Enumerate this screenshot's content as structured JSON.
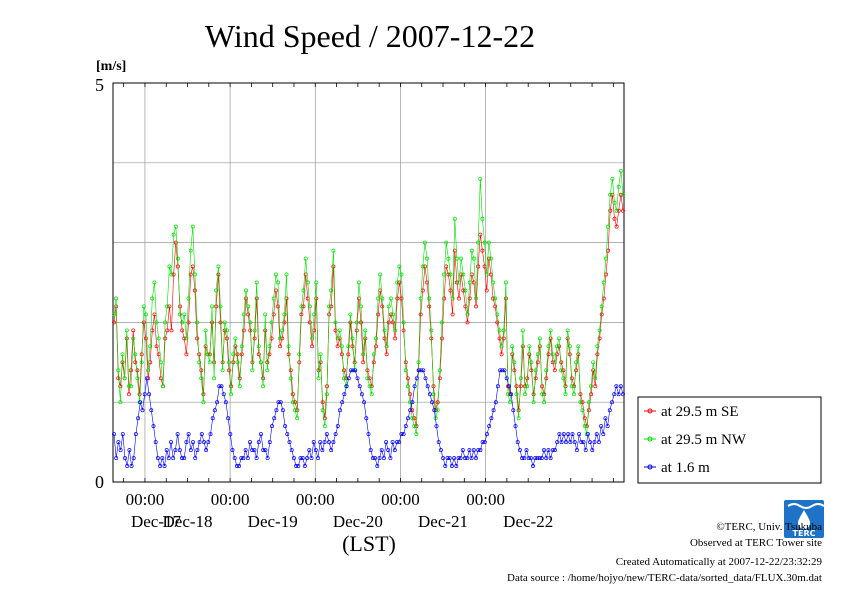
{
  "chart_data": {
    "type": "line",
    "title": "Wind Speed / 2007-12-22",
    "ylabel": "[m/s]",
    "xlabel": "(LST)",
    "ylim": [
      0,
      5
    ],
    "y_ticks": [
      "0",
      "5"
    ],
    "x_time_ticks": [
      "00:00",
      "00:00",
      "00:00",
      "00:00",
      "00:00"
    ],
    "x_date_labels": [
      "Dec-17",
      "Dec-18",
      "Dec-19",
      "Dec-20",
      "Dec-21",
      "Dec-22"
    ],
    "grid": true,
    "legend_position": "right",
    "x_start": "2007-12-16 15:00",
    "sample_interval_hours": 0.5,
    "series": [
      {
        "name": "at 29.5 m SE",
        "color": "#ff0000",
        "values": [
          2.0,
          2.2,
          1.3,
          1.2,
          1.5,
          1.3,
          1.8,
          1.1,
          1.4,
          1.9,
          1.5,
          1.4,
          1.1,
          1.6,
          2.0,
          1.8,
          1.3,
          1.5,
          1.9,
          2.1,
          1.7,
          1.6,
          1.3,
          1.2,
          1.8,
          1.9,
          2.2,
          1.9,
          2.6,
          3.0,
          2.7,
          2.2,
          1.9,
          1.8,
          1.6,
          2.0,
          2.6,
          2.7,
          2.4,
          1.8,
          1.6,
          1.4,
          1.1,
          1.7,
          1.6,
          1.6,
          2.0,
          1.5,
          2.2,
          2.6,
          2.0,
          1.5,
          1.9,
          1.8,
          1.4,
          1.2,
          1.5,
          1.7,
          1.6,
          1.3,
          1.6,
          1.9,
          2.3,
          2.1,
          1.9,
          1.5,
          1.8,
          2.3,
          1.6,
          1.5,
          1.3,
          1.9,
          1.5,
          1.6,
          1.8,
          2.1,
          2.4,
          2.2,
          1.7,
          1.8,
          2.0,
          2.3,
          1.6,
          1.4,
          1.1,
          1.0,
          0.9,
          1.5,
          2.1,
          2.2,
          2.6,
          2.3,
          2.0,
          1.7,
          1.9,
          2.3,
          1.4,
          1.5,
          1.0,
          0.8,
          1.2,
          2.1,
          2.2,
          2.7,
          1.9,
          1.7,
          1.8,
          1.6,
          1.4,
          1.3,
          1.6,
          2.0,
          1.7,
          1.5,
          1.9,
          2.3,
          2.0,
          1.5,
          1.8,
          1.4,
          1.3,
          1.2,
          1.5,
          1.7,
          2.1,
          2.4,
          2.2,
          1.8,
          1.6,
          2.0,
          2.1,
          2.0,
          1.8,
          2.3,
          2.5,
          2.3,
          1.9,
          1.5,
          1.3,
          1.1,
          0.9,
          0.8,
          0.7,
          1.4,
          2.1,
          2.4,
          2.7,
          2.5,
          2.2,
          1.8,
          1.2,
          0.9,
          1.0,
          1.3,
          1.8,
          2.3,
          2.7,
          2.6,
          2.4,
          2.1,
          2.9,
          2.5,
          2.3,
          2.6,
          2.4,
          2.2,
          2.0,
          2.3,
          2.6,
          2.5,
          2.2,
          2.7,
          3.1,
          2.9,
          2.7,
          2.4,
          2.8,
          2.6,
          2.3,
          2.2,
          2.0,
          1.8,
          1.6,
          1.8,
          2.3,
          1.2,
          1.1,
          1.6,
          1.4,
          1.2,
          0.9,
          1.2,
          1.7,
          1.2,
          1.3,
          1.6,
          1.4,
          1.1,
          1.3,
          1.5,
          1.7,
          1.2,
          1.1,
          1.3,
          1.6,
          1.8,
          1.5,
          1.4,
          1.6,
          1.7,
          1.5,
          1.4,
          1.2,
          1.8,
          1.6,
          1.3,
          1.2,
          1.4,
          1.6,
          1.1,
          1.0,
          0.8,
          0.7,
          0.9,
          1.1,
          1.4,
          1.2,
          1.6,
          1.8,
          2.1,
          2.3,
          2.6,
          2.9,
          3.4,
          3.6,
          3.3,
          3.2,
          3.4,
          3.6,
          3.4
        ]
      },
      {
        "name": "at 29.5 m NW",
        "color": "#00dd00",
        "values": [
          2.1,
          2.3,
          1.4,
          1.0,
          1.6,
          1.3,
          1.9,
          1.2,
          1.2,
          1.8,
          1.6,
          1.3,
          1.0,
          1.5,
          2.2,
          2.1,
          1.4,
          1.7,
          2.3,
          2.5,
          2.0,
          1.8,
          1.5,
          1.2,
          2.0,
          2.2,
          2.7,
          2.6,
          3.1,
          3.2,
          2.8,
          2.1,
          2.0,
          2.1,
          1.8,
          2.3,
          2.9,
          3.2,
          2.6,
          2.0,
          1.5,
          1.3,
          1.0,
          1.9,
          1.6,
          1.5,
          2.2,
          1.3,
          2.4,
          2.7,
          2.2,
          1.4,
          2.0,
          1.9,
          1.5,
          1.1,
          1.6,
          1.8,
          1.5,
          1.2,
          1.7,
          2.1,
          2.4,
          2.2,
          2.0,
          1.4,
          1.9,
          2.5,
          1.7,
          1.5,
          1.2,
          2.1,
          1.4,
          1.7,
          2.0,
          2.3,
          2.6,
          2.5,
          1.8,
          1.9,
          2.1,
          2.6,
          1.7,
          1.3,
          1.0,
          0.9,
          0.8,
          1.6,
          2.2,
          2.4,
          2.8,
          2.5,
          2.2,
          1.8,
          2.1,
          2.5,
          1.3,
          1.6,
          0.9,
          0.7,
          1.1,
          2.2,
          2.4,
          2.9,
          2.0,
          1.8,
          1.9,
          1.7,
          1.3,
          1.2,
          1.7,
          2.1,
          1.8,
          1.4,
          2.0,
          2.5,
          2.2,
          1.6,
          1.9,
          1.3,
          1.2,
          1.1,
          1.6,
          1.8,
          2.3,
          2.6,
          2.3,
          1.9,
          1.7,
          2.2,
          2.3,
          2.1,
          1.9,
          2.5,
          2.7,
          2.6,
          2.0,
          1.4,
          1.2,
          1.0,
          0.8,
          0.7,
          0.6,
          1.5,
          2.3,
          2.7,
          3.0,
          2.8,
          2.3,
          1.9,
          1.1,
          0.8,
          0.9,
          1.4,
          2.0,
          2.6,
          3.0,
          2.8,
          2.6,
          2.3,
          3.3,
          2.8,
          2.5,
          2.8,
          2.6,
          2.4,
          2.1,
          2.5,
          2.9,
          2.8,
          2.3,
          3.0,
          3.8,
          3.3,
          3.0,
          2.6,
          3.0,
          2.8,
          2.5,
          2.3,
          2.1,
          1.9,
          1.7,
          1.9,
          2.5,
          1.1,
          1.0,
          1.7,
          1.5,
          1.1,
          0.8,
          1.3,
          1.9,
          1.1,
          1.2,
          1.7,
          1.5,
          1.0,
          1.4,
          1.6,
          1.8,
          1.1,
          1.0,
          1.4,
          1.7,
          1.9,
          1.6,
          1.5,
          1.7,
          1.8,
          1.4,
          1.3,
          1.1,
          1.9,
          1.7,
          1.2,
          1.1,
          1.5,
          1.7,
          1.0,
          0.9,
          0.7,
          0.6,
          1.0,
          1.2,
          1.5,
          1.3,
          1.7,
          1.9,
          2.2,
          2.5,
          2.8,
          3.2,
          3.6,
          3.8,
          3.5,
          3.4,
          3.7,
          3.9,
          3.6
        ]
      },
      {
        "name": "at 1.6 m",
        "color": "#0000ff",
        "values": [
          0.6,
          0.3,
          0.5,
          0.4,
          0.6,
          0.3,
          0.2,
          0.4,
          0.2,
          0.3,
          0.6,
          0.8,
          1.0,
          0.9,
          1.1,
          1.3,
          1.1,
          0.9,
          0.7,
          0.5,
          0.3,
          0.2,
          0.3,
          0.2,
          0.4,
          0.3,
          0.5,
          0.3,
          0.4,
          0.6,
          0.4,
          0.3,
          0.3,
          0.5,
          0.6,
          0.4,
          0.5,
          0.3,
          0.4,
          0.5,
          0.6,
          0.5,
          0.4,
          0.5,
          0.6,
          0.8,
          0.9,
          1.0,
          1.2,
          1.2,
          1.1,
          1.0,
          0.8,
          0.6,
          0.4,
          0.3,
          0.2,
          0.2,
          0.3,
          0.3,
          0.4,
          0.3,
          0.5,
          0.4,
          0.4,
          0.3,
          0.5,
          0.6,
          0.4,
          0.4,
          0.3,
          0.5,
          0.7,
          0.8,
          0.9,
          1.0,
          1.0,
          0.9,
          0.7,
          0.6,
          0.5,
          0.4,
          0.3,
          0.2,
          0.2,
          0.3,
          0.3,
          0.2,
          0.3,
          0.4,
          0.3,
          0.5,
          0.4,
          0.3,
          0.5,
          0.4,
          0.5,
          0.6,
          0.5,
          0.4,
          0.5,
          0.6,
          0.7,
          0.9,
          1.0,
          1.1,
          1.2,
          1.3,
          1.4,
          1.4,
          1.4,
          1.3,
          1.2,
          1.1,
          1.0,
          0.8,
          0.6,
          0.4,
          0.3,
          0.3,
          0.2,
          0.3,
          0.4,
          0.3,
          0.5,
          0.4,
          0.3,
          0.5,
          0.4,
          0.5,
          0.5,
          0.6,
          0.6,
          0.7,
          0.8,
          0.9,
          1.0,
          1.2,
          1.3,
          1.4,
          1.4,
          1.4,
          1.3,
          1.2,
          1.1,
          1.0,
          0.9,
          0.7,
          0.5,
          0.4,
          0.3,
          0.2,
          0.3,
          0.3,
          0.2,
          0.3,
          0.2,
          0.3,
          0.3,
          0.4,
          0.3,
          0.3,
          0.4,
          0.3,
          0.4,
          0.3,
          0.4,
          0.4,
          0.5,
          0.5,
          0.6,
          0.7,
          0.8,
          0.9,
          1.0,
          1.2,
          1.4,
          1.4,
          1.4,
          1.3,
          1.2,
          1.1,
          0.9,
          0.7,
          0.5,
          0.4,
          0.3,
          0.3,
          0.4,
          0.3,
          0.3,
          0.2,
          0.3,
          0.3,
          0.3,
          0.3,
          0.4,
          0.3,
          0.4,
          0.3,
          0.4,
          0.4,
          0.5,
          0.6,
          0.5,
          0.6,
          0.5,
          0.6,
          0.5,
          0.6,
          0.5,
          0.4,
          0.6,
          0.5,
          0.5,
          0.4,
          0.6,
          0.5,
          0.4,
          0.5,
          0.6,
          0.5,
          0.7,
          0.6,
          0.8,
          0.7,
          0.9,
          1.0,
          1.1,
          1.2,
          1.1,
          1.2,
          1.1
        ]
      }
    ]
  },
  "footer": {
    "copyright": "©TERC, Univ. Tsukuba",
    "observed": "Observed at TERC Tower site",
    "created": "Created Automatically at 2007-12-22/23:32:29",
    "source": "Data source : /home/hojyo/new/TERC-data/sorted_data/FLUX.30m.dat"
  },
  "logo": {
    "text": "TERC",
    "color": "#1e73c8"
  }
}
